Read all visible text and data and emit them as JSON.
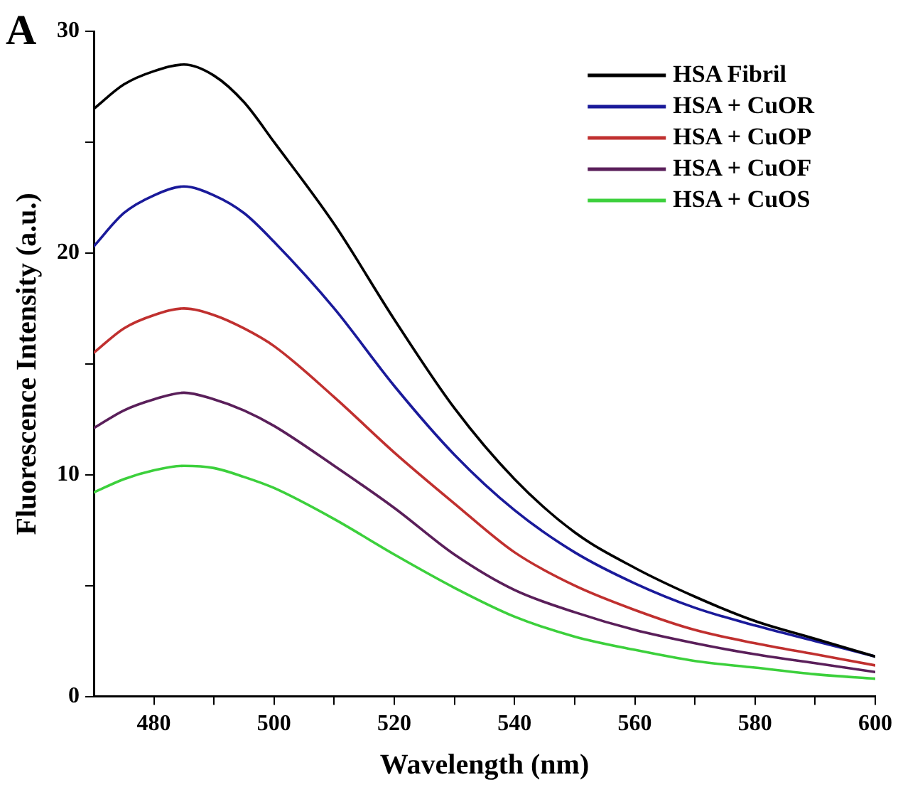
{
  "chart_data": {
    "type": "line",
    "xlabel": "Wavelength (nm)",
    "ylabel": "Fluorescence Intensity (a.u.)",
    "annotations": [
      "A"
    ],
    "x": [
      470,
      475,
      480,
      485,
      490,
      495,
      500,
      510,
      520,
      530,
      540,
      550,
      560,
      570,
      580,
      590,
      600
    ],
    "series": [
      {
        "name": "HSA Fibril",
        "color": "#000000",
        "values": [
          26.5,
          27.6,
          28.2,
          28.5,
          28.0,
          26.8,
          25.0,
          21.3,
          17.0,
          13.0,
          9.8,
          7.4,
          5.8,
          4.5,
          3.4,
          2.6,
          1.8
        ]
      },
      {
        "name": "HSA + CuOR",
        "color": "#1a1a9a",
        "values": [
          20.3,
          21.8,
          22.6,
          23.0,
          22.6,
          21.8,
          20.5,
          17.5,
          14.0,
          10.9,
          8.4,
          6.5,
          5.1,
          4.0,
          3.2,
          2.5,
          1.8
        ]
      },
      {
        "name": "HSA + CuOP",
        "color": "#c0302f",
        "values": [
          15.5,
          16.6,
          17.2,
          17.5,
          17.2,
          16.6,
          15.8,
          13.5,
          11.0,
          8.7,
          6.5,
          5.0,
          3.9,
          3.0,
          2.4,
          1.9,
          1.4
        ]
      },
      {
        "name": "HSA + CuOF",
        "color": "#5a1f5a",
        "values": [
          12.1,
          12.9,
          13.4,
          13.7,
          13.4,
          12.9,
          12.2,
          10.4,
          8.5,
          6.4,
          4.8,
          3.8,
          3.0,
          2.4,
          1.9,
          1.5,
          1.1
        ]
      },
      {
        "name": "HSA + CuOS",
        "color": "#3cd03c",
        "values": [
          9.2,
          9.8,
          10.2,
          10.4,
          10.3,
          9.9,
          9.4,
          8.0,
          6.4,
          4.9,
          3.6,
          2.7,
          2.1,
          1.6,
          1.3,
          1.0,
          0.8
        ]
      }
    ],
    "xlim": [
      470,
      600
    ],
    "xticks": [
      480,
      {
        "value": 490,
        "label": null
      },
      500,
      {
        "value": 510,
        "label": null
      },
      520,
      {
        "value": 530,
        "label": null
      },
      540,
      {
        "value": 550,
        "label": null
      },
      560,
      {
        "value": 570,
        "label": null
      },
      580,
      {
        "value": 590,
        "label": null
      },
      600
    ],
    "ylim": [
      0,
      30
    ],
    "yticks": [
      0,
      {
        "value": 5,
        "label": null
      },
      10,
      {
        "value": 15,
        "label": null
      },
      20,
      {
        "value": 25,
        "label": null
      },
      30
    ],
    "grid": false,
    "legend": "top right",
    "marker": "none",
    "line_style": "solid"
  }
}
